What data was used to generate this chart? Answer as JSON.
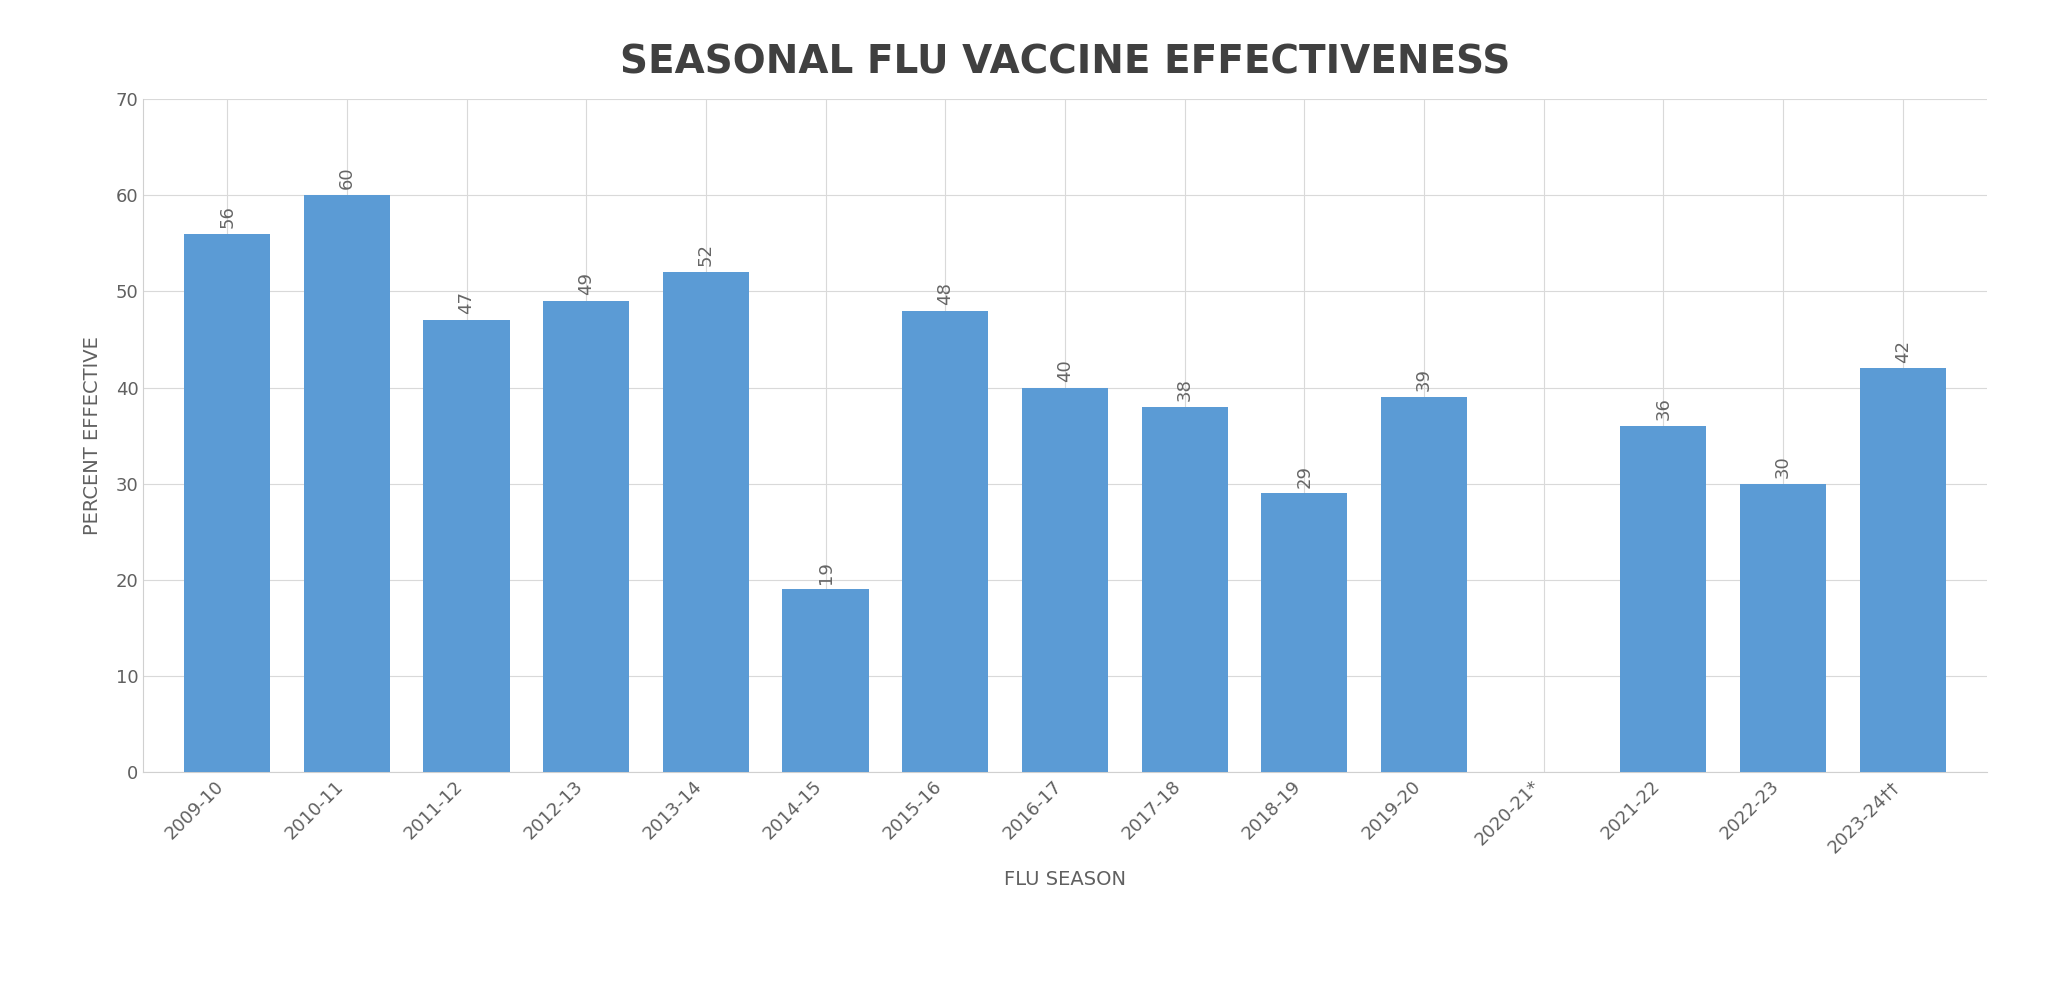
{
  "title": "SEASONAL FLU VACCINE EFFECTIVENESS",
  "xlabel": "FLU SEASON",
  "ylabel": "PERCENT EFFECTIVE",
  "categories": [
    "2009-10",
    "2010-11",
    "2011-12",
    "2012-13",
    "2013-14",
    "2014-15",
    "2015-16",
    "2016-17",
    "2017-18",
    "2018-19",
    "2019-20",
    "2020-21*",
    "2021-22",
    "2022-23",
    "2023-24††"
  ],
  "values": [
    56,
    60,
    47,
    49,
    52,
    19,
    48,
    40,
    38,
    29,
    39,
    null,
    36,
    30,
    42
  ],
  "bar_color": "#5b9bd5",
  "ylim": [
    0,
    70
  ],
  "yticks": [
    0,
    10,
    20,
    30,
    40,
    50,
    60,
    70
  ],
  "background_color": "#ffffff",
  "title_fontsize": 28,
  "axis_label_fontsize": 14,
  "tick_fontsize": 13,
  "value_label_fontsize": 13,
  "value_label_color": "#666666",
  "grid_color": "#d9d9d9",
  "spine_color": "#d0d0d0",
  "title_color": "#404040",
  "tick_color": "#606060",
  "bar_width": 0.72
}
